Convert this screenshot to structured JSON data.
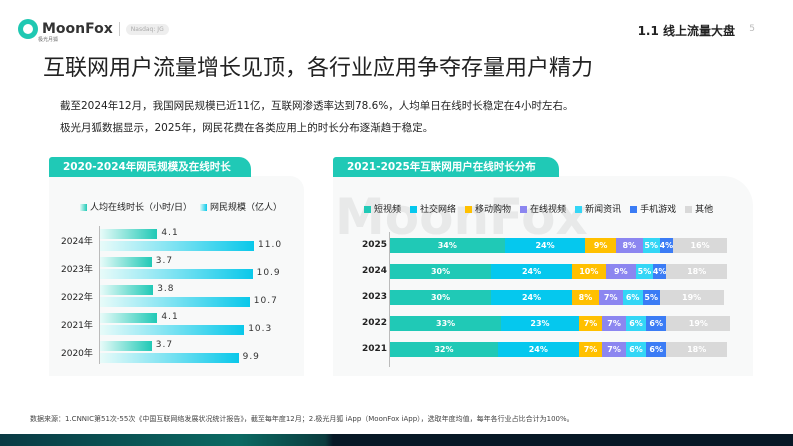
{
  "header": {
    "brand": "MoonFox",
    "brand_sub": "极光月狐",
    "ticker": "Nasdaq: JG",
    "section": "1.1 线上流量大盘",
    "page": "5"
  },
  "title": "互联网用户流量增长见顶，各行业应用争夺存量用户精力",
  "paragraphs": [
    "截至2024年12月，我国网民规模已近11亿，互联网渗透率达到78.6%，人均单日在线时长稳定在4小时左右。",
    "极光月狐数据显示，2025年，网民花费在各类应用上的时长分布逐渐趋于稳定。"
  ],
  "watermark": "MoonFox",
  "chart_data": [
    {
      "type": "bar",
      "orientation": "horizontal",
      "title": "2020-2024年网民规模及在线时长",
      "categories": [
        "2024年",
        "2023年",
        "2022年",
        "2021年",
        "2020年"
      ],
      "series": [
        {
          "name": "人均在线时长（小时/日）",
          "values": [
            4.1,
            3.7,
            3.8,
            4.1,
            3.7
          ],
          "color": "#20c9b6"
        },
        {
          "name": "网民规模（亿人）",
          "values": [
            11.0,
            10.9,
            10.7,
            10.3,
            9.9
          ],
          "color": "#0ac8ea"
        }
      ],
      "value_labels": [
        [
          "4.1",
          "3.7",
          "3.8",
          "4.1",
          "3.7"
        ],
        [
          "11.0",
          "10.9",
          "10.7",
          "10.3",
          "9.9"
        ]
      ],
      "legend": "top"
    },
    {
      "type": "bar",
      "orientation": "horizontal",
      "stacked": true,
      "title": "2021-2025年互联网用户在线时长分布",
      "categories": [
        "2025",
        "2024",
        "2023",
        "2022",
        "2021"
      ],
      "series": [
        {
          "name": "短视频",
          "color": "#20c9b6",
          "values": [
            34,
            30,
            30,
            33,
            32
          ]
        },
        {
          "name": "社交网络",
          "color": "#05c8ee",
          "values": [
            24,
            24,
            24,
            23,
            24
          ]
        },
        {
          "name": "移动购物",
          "color": "#ffc000",
          "values": [
            9,
            10,
            8,
            7,
            7
          ]
        },
        {
          "name": "在线视频",
          "color": "#8c86f0",
          "values": [
            8,
            9,
            7,
            7,
            7
          ]
        },
        {
          "name": "新闻资讯",
          "color": "#33d6f6",
          "values": [
            5,
            5,
            6,
            6,
            6
          ]
        },
        {
          "name": "手机游戏",
          "color": "#3b7cf5",
          "values": [
            4,
            4,
            5,
            6,
            6
          ]
        },
        {
          "name": "其他",
          "color": "#d9d9d9",
          "values": [
            16,
            18,
            19,
            19,
            18
          ]
        }
      ],
      "unit": "%",
      "legend": "top"
    }
  ],
  "source": "数据来源：1.CNNIC第51次-55次《中国互联网络发展状况统计报告》，截至每年度12月；2.极光月狐 iApp（MoonFox iApp），选取年度均值，每年各行业占比合计为100%。"
}
